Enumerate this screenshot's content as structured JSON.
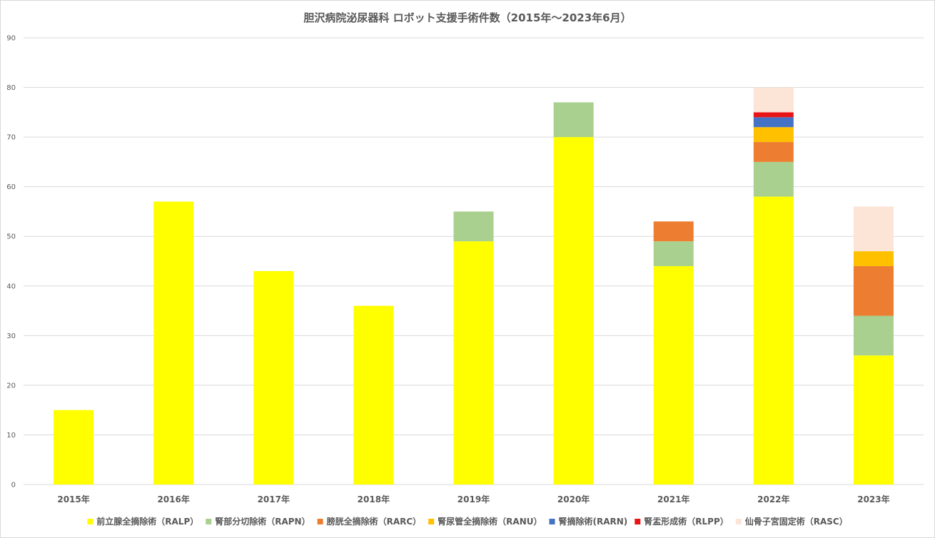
{
  "chart_data": {
    "type": "bar",
    "stacked": true,
    "title": "胆沢病院泌尿器科 ロボット支援手術件数（2015年～2023年6月）",
    "xlabel": "",
    "ylabel": "",
    "ylim": [
      0,
      90
    ],
    "yticks": [
      0,
      10,
      20,
      30,
      40,
      50,
      60,
      70,
      80,
      90
    ],
    "grid": true,
    "legend_position": "bottom",
    "categories": [
      "2015年",
      "2016年",
      "2017年",
      "2018年",
      "2019年",
      "2020年",
      "2021年",
      "2022年",
      "2023年"
    ],
    "series": [
      {
        "name": "前立腺全摘除術（RALP）",
        "color": "#ffff00",
        "values": [
          15,
          57,
          43,
          36,
          49,
          70,
          44,
          58,
          26
        ]
      },
      {
        "name": "腎部分切除術（RAPN）",
        "color": "#a9d08e",
        "values": [
          0,
          0,
          0,
          0,
          6,
          7,
          5,
          7,
          8
        ]
      },
      {
        "name": "膀胱全摘除術（RARC）",
        "color": "#ed7d31",
        "values": [
          0,
          0,
          0,
          0,
          0,
          0,
          4,
          4,
          10
        ]
      },
      {
        "name": "腎尿管全摘除術（RANU）",
        "color": "#ffc000",
        "values": [
          0,
          0,
          0,
          0,
          0,
          0,
          0,
          3,
          3
        ]
      },
      {
        "name": "腎摘除術(RARN)",
        "color": "#4472c4",
        "values": [
          0,
          0,
          0,
          0,
          0,
          0,
          0,
          2,
          0
        ]
      },
      {
        "name": "腎盂形成術（RLPP）",
        "color": "#e81416",
        "values": [
          0,
          0,
          0,
          0,
          0,
          0,
          0,
          1,
          0
        ]
      },
      {
        "name": "仙骨子宮固定術（RASC）",
        "color": "#fce4d6",
        "values": [
          0,
          0,
          0,
          0,
          0,
          0,
          0,
          5,
          9
        ]
      }
    ]
  },
  "colors": {
    "gridline": "#d9d9d9",
    "text": "#595959",
    "frame": "#d9d9d9"
  }
}
